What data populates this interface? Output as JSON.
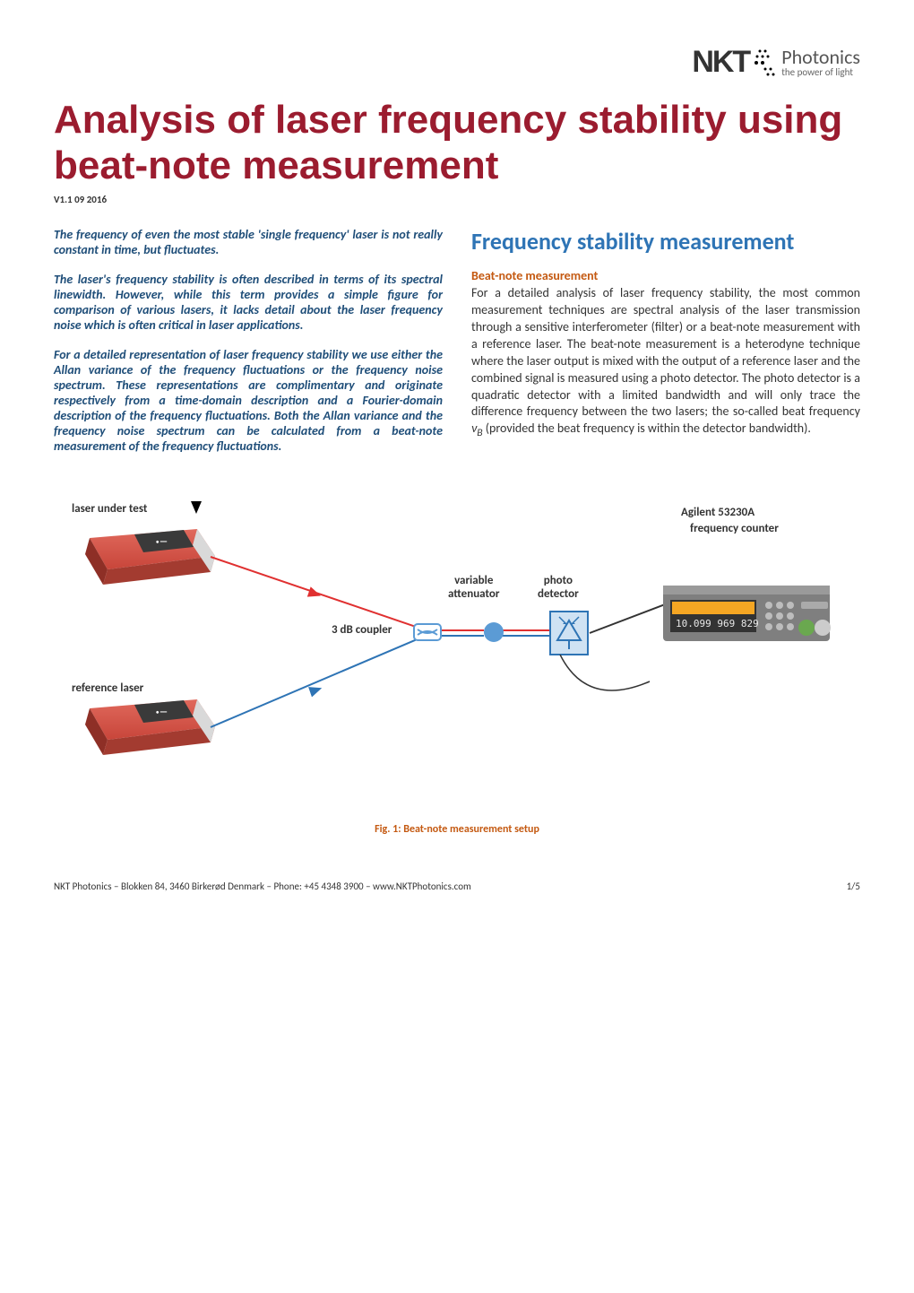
{
  "logo": {
    "brand": "NKT",
    "word": "Photonics",
    "tagline": "the power of light"
  },
  "title": "Analysis of laser frequency stability using beat-note measurement",
  "title_color": "#9b1c2f",
  "version": "V1.1 09 2016",
  "abstract_color": "#1f4e79",
  "abstract": [
    "The frequency of even the most stable 'single frequency' laser is not really constant in time, but fluctuates.",
    "The laser's frequency stability is often described in terms of its spectral linewidth. However, while this term provides a simple figure for comparison of various lasers, it lacks detail about the laser frequency noise which is often critical in laser applications.",
    "For a detailed representation of laser frequency stability we use either the Allan variance of the frequency fluctuations or the frequency noise spectrum. These representations are complimentary and originate respectively from a time-domain description and a Fourier-domain description of the frequency fluctuations. Both the Allan variance and the frequency noise spectrum can be calculated from a beat-note measurement of the frequency fluctuations."
  ],
  "section_heading": "Frequency stability measurement",
  "section_heading_color": "#2e74b5",
  "subsection_heading": "Beat-note measurement",
  "subsection_heading_color": "#c45911",
  "body": "For a detailed analysis of laser frequency stability, the most common measurement techniques are spectral analysis of the laser transmission through a sensitive interferometer (filter) or a beat-note measurement with a reference laser. The beat-note measurement is a heterodyne technique where the laser output is mixed with the output of a reference laser and the combined signal is measured using a photo detector. The photo detector is a quadratic detector with a limited bandwidth and will only trace the difference frequency between the two lasers; the so-called beat frequency ν_B (provided the beat frequency is within the detector bandwidth).",
  "figure": {
    "labels": {
      "laser_under_test": "laser under test",
      "reference_laser": "reference laser",
      "coupler": "3 dB coupler",
      "attenuator": "variable attenuator",
      "detector": "photo detector",
      "counter_title": "Agilent 53230A",
      "counter_sub": "frequency counter",
      "counter_display": "10.099 969 829"
    },
    "colors": {
      "laser_body": "#c8453a",
      "laser_front": "#d9d9d9",
      "beam_red": "#e03030",
      "beam_blue": "#2e74b5",
      "coupler_fill": "#5b9bd5",
      "detector_fill": "#cfe2f3",
      "detector_stroke": "#2e74b5",
      "counter_fill": "#7f7f7f",
      "counter_screen": "#f5a623",
      "counter_text": "#e8e8e8"
    },
    "caption": "Fig. 1: Beat-note measurement setup",
    "caption_color": "#c45911"
  },
  "footer": {
    "left": "NKT Photonics – Blokken 84, 3460 Birkerød Denmark – Phone: +45 4348 3900 – www.NKTPhotonics.com",
    "right": "1/5"
  }
}
